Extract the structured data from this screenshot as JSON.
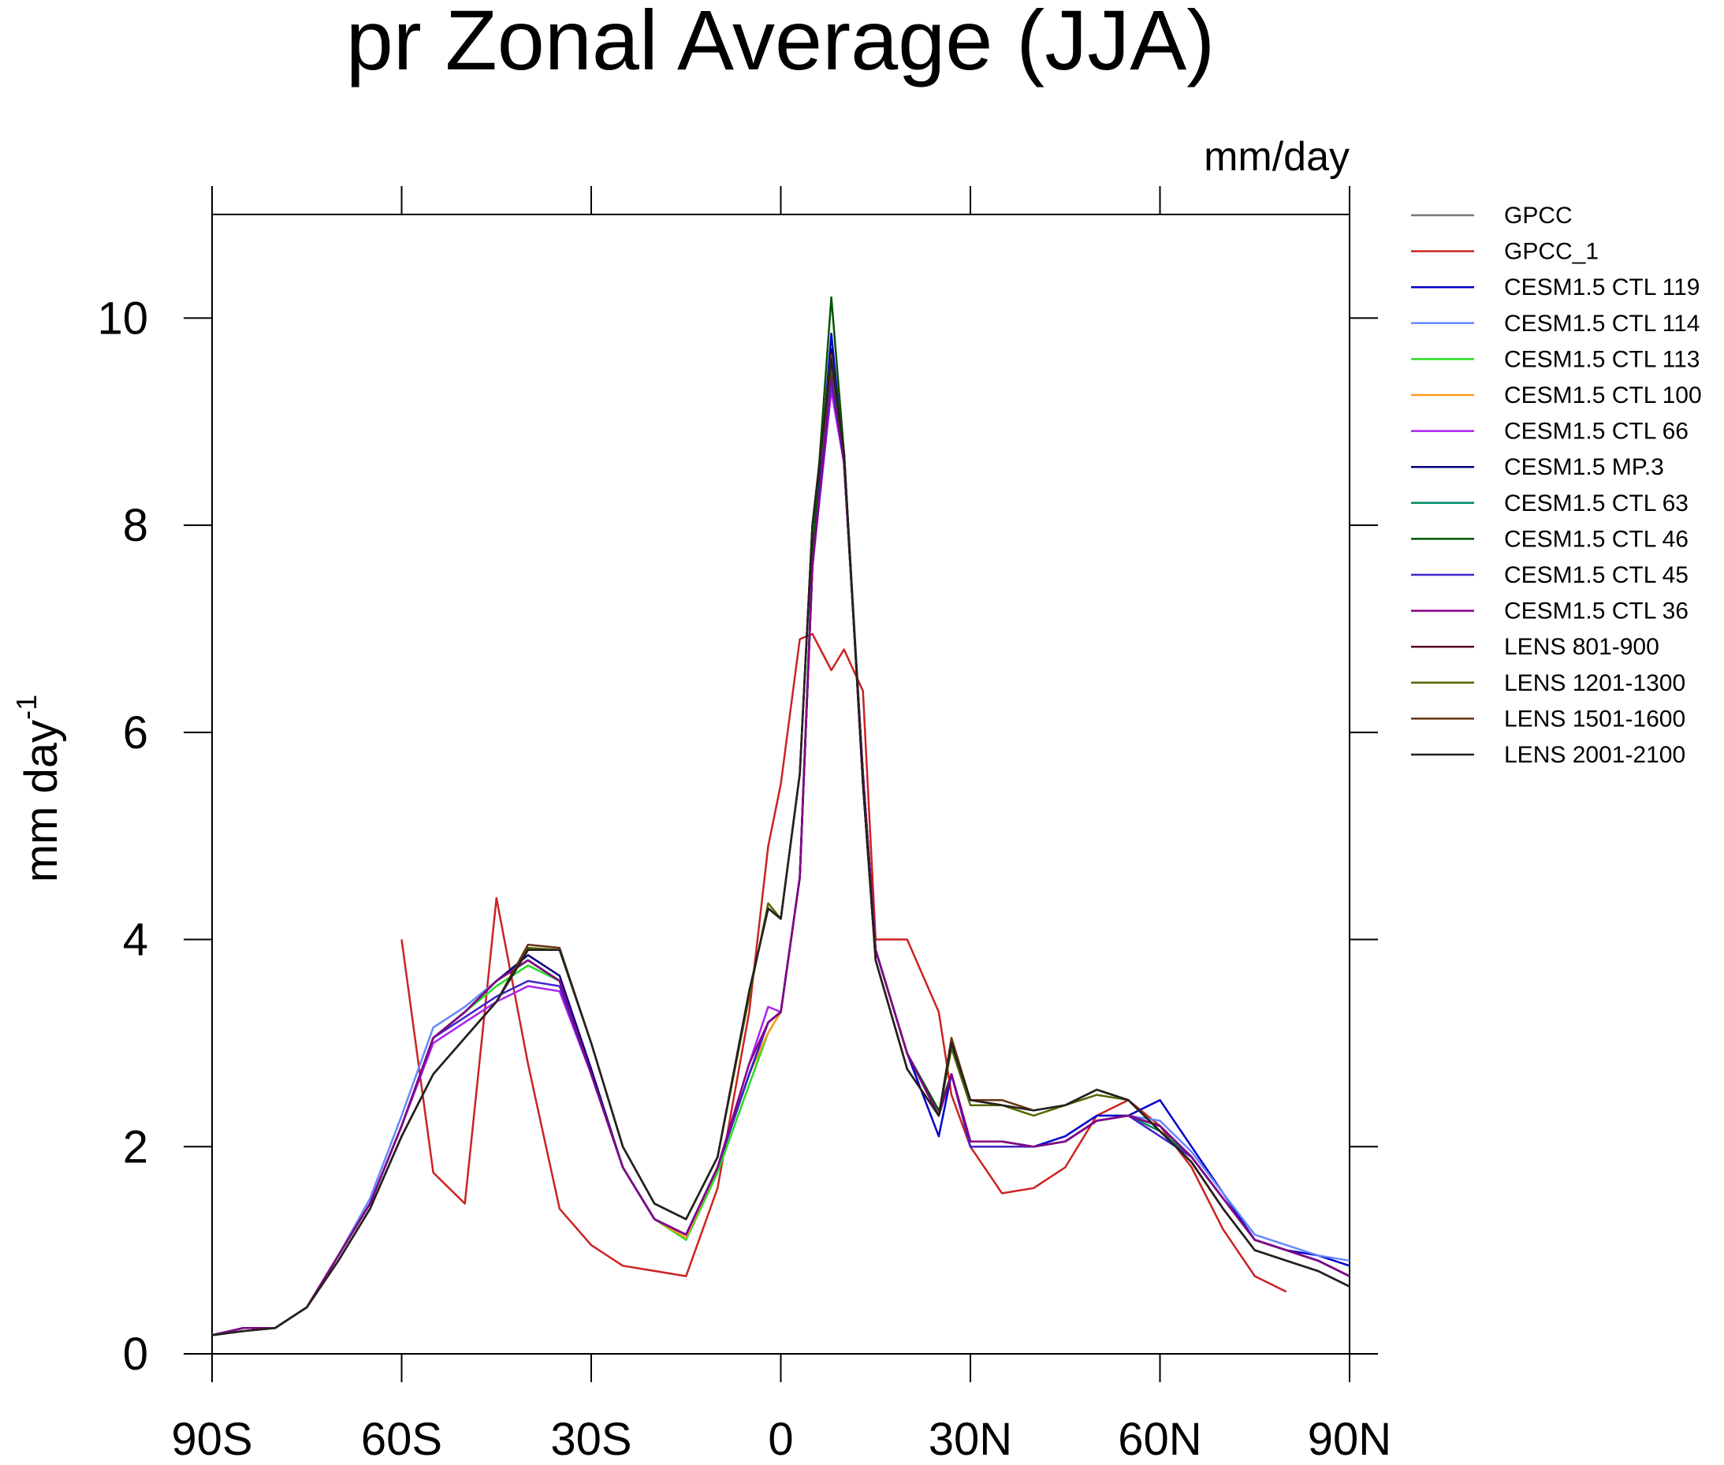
{
  "chart_data": {
    "type": "line",
    "title": "pr Zonal Average (JJA)",
    "units": "mm/day",
    "y_label": "mm day",
    "y_label_sup": "-1",
    "xlim": [
      -90,
      90
    ],
    "ylim": [
      0,
      11
    ],
    "xticks": [
      {
        "value": -90,
        "label": "90S"
      },
      {
        "value": -60,
        "label": "60S"
      },
      {
        "value": -30,
        "label": "30S"
      },
      0,
      {
        "value": 30,
        "label": "30N"
      },
      {
        "value": 60,
        "label": "60N"
      },
      {
        "value": 90,
        "label": "90N"
      }
    ],
    "yticks": [
      0,
      2,
      4,
      6,
      8,
      10
    ],
    "x": [
      -90,
      -85,
      -80,
      -75,
      -70,
      -65,
      -60,
      -55,
      -50,
      -45,
      -40,
      -35,
      -30,
      -25,
      -20,
      -15,
      -10,
      -5,
      -2,
      0,
      3,
      5,
      8,
      10,
      13,
      15,
      20,
      25,
      27,
      30,
      35,
      40,
      45,
      50,
      55,
      60,
      65,
      70,
      75,
      80,
      85,
      90
    ],
    "series": [
      {
        "name": "GPCC",
        "color": "#777777",
        "values": [
          null,
          null,
          null,
          null,
          null,
          null,
          null,
          null,
          null,
          null,
          null,
          null,
          null,
          null,
          null,
          null,
          null,
          null,
          null,
          null,
          null,
          null,
          null,
          null,
          null,
          null,
          null,
          null,
          null,
          null,
          null,
          null,
          null,
          null,
          null,
          null,
          null,
          null,
          null,
          null,
          null,
          null
        ]
      },
      {
        "name": "GPCC_1",
        "color": "#cc2222",
        "values": [
          null,
          null,
          null,
          null,
          null,
          null,
          4.0,
          1.75,
          1.45,
          4.4,
          2.8,
          1.4,
          1.05,
          0.85,
          0.8,
          0.75,
          1.6,
          3.3,
          4.9,
          5.5,
          6.9,
          6.95,
          6.6,
          6.8,
          6.4,
          4.0,
          4.0,
          3.3,
          2.5,
          2.0,
          1.55,
          1.6,
          1.8,
          2.3,
          2.45,
          2.2,
          1.8,
          1.2,
          0.75,
          0.6,
          null,
          null
        ]
      },
      {
        "name": "CESM1.5 CTL 119",
        "color": "#0000cc",
        "values": [
          0.18,
          0.25,
          0.25,
          0.45,
          0.95,
          1.45,
          2.2,
          3.05,
          3.3,
          3.6,
          3.8,
          3.6,
          2.7,
          1.8,
          1.3,
          1.15,
          1.8,
          2.7,
          3.2,
          3.3,
          4.6,
          7.6,
          9.85,
          8.6,
          5.6,
          3.9,
          2.9,
          2.1,
          2.7,
          2.05,
          2.05,
          2.0,
          2.1,
          2.3,
          2.3,
          2.45,
          2.0,
          1.55,
          1.1,
          1.0,
          0.95,
          0.85
        ]
      },
      {
        "name": "CESM1.5 CTL 114",
        "color": "#6688ff",
        "values": [
          0.18,
          0.25,
          0.25,
          0.45,
          0.95,
          1.5,
          2.3,
          3.15,
          3.35,
          3.6,
          3.8,
          3.6,
          2.7,
          1.8,
          1.3,
          1.15,
          1.8,
          2.7,
          3.2,
          3.3,
          4.6,
          7.6,
          9.5,
          8.6,
          5.6,
          3.9,
          2.9,
          2.3,
          2.7,
          2.05,
          2.05,
          2.0,
          2.05,
          2.25,
          2.3,
          2.25,
          1.95,
          1.55,
          1.15,
          1.05,
          0.95,
          0.9
        ]
      },
      {
        "name": "CESM1.5 CTL 113",
        "color": "#22dd22",
        "values": [
          0.18,
          0.25,
          0.25,
          0.45,
          0.95,
          1.45,
          2.2,
          3.05,
          3.3,
          3.55,
          3.75,
          3.6,
          2.7,
          1.8,
          1.3,
          1.1,
          1.75,
          2.6,
          3.1,
          3.3,
          4.6,
          7.6,
          9.5,
          8.6,
          5.6,
          3.9,
          2.9,
          2.3,
          2.7,
          2.05,
          2.05,
          2.0,
          2.05,
          2.25,
          2.3,
          2.2,
          1.9,
          1.5,
          1.1,
          1.0,
          0.9,
          0.75
        ]
      },
      {
        "name": "CESM1.5 CTL 100",
        "color": "#ff9922",
        "values": [
          0.18,
          0.25,
          0.25,
          0.45,
          0.95,
          1.45,
          2.2,
          3.05,
          3.3,
          3.6,
          3.8,
          3.6,
          2.7,
          1.8,
          1.3,
          1.12,
          1.8,
          2.7,
          3.1,
          3.3,
          4.6,
          7.6,
          9.45,
          8.6,
          5.6,
          3.9,
          2.9,
          2.3,
          2.7,
          2.05,
          2.05,
          2.0,
          2.05,
          2.25,
          2.3,
          2.2,
          1.9,
          1.5,
          1.1,
          1.0,
          0.9,
          0.75
        ]
      },
      {
        "name": "CESM1.5 CTL 66",
        "color": "#aa22ee",
        "values": [
          0.18,
          0.25,
          0.25,
          0.45,
          0.95,
          1.45,
          2.2,
          3.0,
          3.2,
          3.4,
          3.55,
          3.5,
          2.7,
          1.8,
          1.3,
          1.15,
          1.8,
          2.8,
          3.35,
          3.3,
          4.6,
          7.6,
          9.3,
          8.6,
          5.6,
          3.9,
          2.9,
          2.3,
          2.7,
          2.0,
          2.0,
          2.0,
          2.05,
          2.25,
          2.3,
          2.2,
          1.9,
          1.5,
          1.1,
          1.0,
          0.9,
          0.75
        ]
      },
      {
        "name": "CESM1.5 MP.3",
        "color": "#000080",
        "values": [
          0.18,
          0.25,
          0.25,
          0.45,
          0.95,
          1.45,
          2.2,
          3.05,
          3.3,
          3.6,
          3.85,
          3.65,
          2.75,
          1.8,
          1.3,
          1.15,
          1.8,
          2.7,
          3.2,
          3.3,
          4.6,
          7.6,
          9.7,
          8.6,
          5.6,
          3.9,
          2.9,
          2.3,
          2.7,
          2.05,
          2.05,
          2.0,
          2.05,
          2.25,
          2.3,
          2.2,
          1.9,
          1.5,
          1.1,
          1.0,
          0.9,
          0.75
        ]
      },
      {
        "name": "CESM1.5 CTL 63",
        "color": "#008866",
        "values": [
          0.18,
          0.25,
          0.25,
          0.45,
          0.95,
          1.45,
          2.2,
          3.05,
          3.3,
          3.6,
          3.8,
          3.6,
          2.7,
          1.8,
          1.3,
          1.15,
          1.8,
          2.7,
          3.2,
          3.3,
          4.6,
          7.6,
          9.55,
          8.6,
          5.6,
          3.9,
          2.9,
          2.3,
          2.7,
          2.05,
          2.05,
          2.0,
          2.05,
          2.25,
          2.3,
          2.15,
          1.9,
          1.5,
          1.1,
          1.0,
          0.9,
          0.75
        ]
      },
      {
        "name": "CESM1.5 CTL 46",
        "color": "#005500",
        "values": [
          0.18,
          0.25,
          0.25,
          0.45,
          0.95,
          1.45,
          2.2,
          3.05,
          3.3,
          3.6,
          3.8,
          3.6,
          2.7,
          1.8,
          1.3,
          1.15,
          1.8,
          2.7,
          3.2,
          3.3,
          4.6,
          7.7,
          10.2,
          8.7,
          5.6,
          3.9,
          2.9,
          2.35,
          2.7,
          2.05,
          2.05,
          2.0,
          2.05,
          2.25,
          2.3,
          2.2,
          1.9,
          1.5,
          1.1,
          1.0,
          0.9,
          0.75
        ]
      },
      {
        "name": "CESM1.5 CTL 45",
        "color": "#4422cc",
        "values": [
          0.18,
          0.25,
          0.25,
          0.45,
          0.95,
          1.45,
          2.2,
          3.05,
          3.25,
          3.45,
          3.6,
          3.55,
          2.7,
          1.8,
          1.3,
          1.15,
          1.8,
          2.7,
          3.2,
          3.3,
          4.6,
          7.6,
          9.4,
          8.6,
          5.6,
          3.9,
          2.9,
          2.3,
          2.7,
          2.0,
          2.0,
          2.0,
          2.05,
          2.25,
          2.3,
          2.1,
          1.9,
          1.5,
          1.1,
          1.0,
          0.9,
          0.75
        ]
      },
      {
        "name": "CESM1.5 CTL 36",
        "color": "#880088",
        "values": [
          0.18,
          0.25,
          0.25,
          0.45,
          0.95,
          1.45,
          2.2,
          3.05,
          3.3,
          3.6,
          3.8,
          3.6,
          2.7,
          1.8,
          1.3,
          1.15,
          1.8,
          2.8,
          3.2,
          3.3,
          4.6,
          7.6,
          9.5,
          8.6,
          5.6,
          3.9,
          2.9,
          2.3,
          2.7,
          2.05,
          2.05,
          2.0,
          2.05,
          2.25,
          2.3,
          2.2,
          1.9,
          1.5,
          1.1,
          1.0,
          0.9,
          0.75
        ]
      },
      {
        "name": "LENS 801-900",
        "color": "#550022",
        "values": [
          0.18,
          0.22,
          0.25,
          0.45,
          0.9,
          1.4,
          2.1,
          2.7,
          3.05,
          3.4,
          3.9,
          3.9,
          3.0,
          2.0,
          1.45,
          1.3,
          1.9,
          3.5,
          4.3,
          4.2,
          5.6,
          8.0,
          9.6,
          8.7,
          5.5,
          3.8,
          2.75,
          2.3,
          3.0,
          2.45,
          2.4,
          2.35,
          2.4,
          2.55,
          2.45,
          2.15,
          1.85,
          1.4,
          1.0,
          0.9,
          0.8,
          0.65
        ]
      },
      {
        "name": "LENS 1201-1300",
        "color": "#556600",
        "values": [
          0.18,
          0.22,
          0.25,
          0.45,
          0.9,
          1.4,
          2.1,
          2.7,
          3.05,
          3.4,
          3.92,
          3.9,
          3.0,
          2.0,
          1.45,
          1.3,
          1.9,
          3.45,
          4.35,
          4.2,
          5.6,
          8.0,
          9.55,
          8.7,
          5.5,
          3.8,
          2.75,
          2.3,
          2.95,
          2.4,
          2.4,
          2.3,
          2.4,
          2.5,
          2.45,
          2.15,
          1.85,
          1.4,
          1.0,
          0.9,
          0.8,
          0.65
        ]
      },
      {
        "name": "LENS 1501-1600",
        "color": "#663311",
        "values": [
          0.18,
          0.22,
          0.25,
          0.45,
          0.9,
          1.4,
          2.1,
          2.7,
          3.05,
          3.4,
          3.95,
          3.92,
          3.0,
          2.0,
          1.45,
          1.3,
          1.9,
          3.5,
          4.3,
          4.2,
          5.6,
          8.0,
          9.65,
          8.7,
          5.5,
          3.8,
          2.75,
          2.3,
          3.05,
          2.45,
          2.45,
          2.35,
          2.4,
          2.55,
          2.45,
          2.15,
          1.85,
          1.4,
          1.0,
          0.9,
          0.8,
          0.65
        ]
      },
      {
        "name": "LENS 2001-2100",
        "color": "#222222",
        "values": [
          0.18,
          0.22,
          0.25,
          0.45,
          0.9,
          1.4,
          2.1,
          2.7,
          3.05,
          3.4,
          3.9,
          3.9,
          3.0,
          2.0,
          1.45,
          1.3,
          1.9,
          3.5,
          4.3,
          4.2,
          5.6,
          8.0,
          9.6,
          8.7,
          5.5,
          3.8,
          2.75,
          2.3,
          3.0,
          2.45,
          2.4,
          2.35,
          2.4,
          2.55,
          2.45,
          2.15,
          1.85,
          1.4,
          1.0,
          0.9,
          0.8,
          0.65
        ]
      }
    ]
  }
}
